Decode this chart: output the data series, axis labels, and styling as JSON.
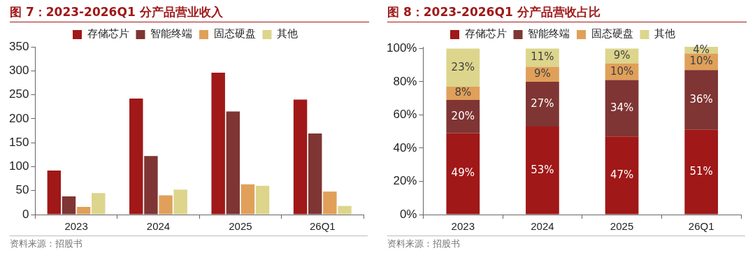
{
  "chart_data": [
    {
      "type": "bar",
      "title": "图 7：2023-2026Q1 分产品营业收入",
      "categories": [
        "2023",
        "2024",
        "2025",
        "26Q1"
      ],
      "series": [
        {
          "name": "存储芯片",
          "color": "#a01818",
          "values": [
            92,
            242,
            296,
            240
          ]
        },
        {
          "name": "智能终端",
          "color": "#7f3533",
          "values": [
            38,
            122,
            215,
            169
          ]
        },
        {
          "name": "固态硬盘",
          "color": "#e0a05a",
          "values": [
            16,
            40,
            63,
            48
          ]
        },
        {
          "name": "其他",
          "color": "#ddd58c",
          "values": [
            45,
            52,
            60,
            18
          ]
        }
      ],
      "ylim": [
        0,
        350
      ],
      "yticks": [
        0,
        50,
        100,
        150,
        200,
        250,
        300,
        350
      ],
      "grid": false,
      "legend": "top",
      "annotations": [
        "资料来源：招股书"
      ]
    },
    {
      "type": "bar",
      "title": "图 8：2023-2026Q1 分产品营收占比",
      "categories": [
        "2023",
        "2024",
        "2025",
        "26Q1"
      ],
      "stacked": true,
      "series": [
        {
          "name": "存储芯片",
          "color": "#a01818",
          "values": [
            49,
            53,
            47,
            51
          ],
          "value_labels": [
            "49%",
            "53%",
            "47%",
            "51%"
          ]
        },
        {
          "name": "智能终端",
          "color": "#7f3533",
          "values": [
            20,
            27,
            34,
            36
          ],
          "value_labels": [
            "20%",
            "27%",
            "34%",
            "36%"
          ]
        },
        {
          "name": "固态硬盘",
          "color": "#e0a05a",
          "values": [
            8,
            9,
            10,
            10
          ],
          "value_labels": [
            "8%",
            "9%",
            "10%",
            "10%"
          ]
        },
        {
          "name": "其他",
          "color": "#ddd58c",
          "values": [
            23,
            11,
            9,
            4
          ],
          "value_labels": [
            "23%",
            "11%",
            "9%",
            "4%"
          ]
        }
      ],
      "ylim": [
        0,
        101
      ],
      "yticks": [
        {
          "value": 0,
          "label": "0%"
        },
        {
          "value": 20,
          "label": "20%"
        },
        {
          "value": 40,
          "label": "40%"
        },
        {
          "value": 60,
          "label": "60%"
        },
        {
          "value": 80,
          "label": "80%"
        },
        {
          "value": 100,
          "label": "100%"
        }
      ],
      "grid": false,
      "legend": "top",
      "annotations": [
        "资料来源：招股书"
      ]
    }
  ]
}
